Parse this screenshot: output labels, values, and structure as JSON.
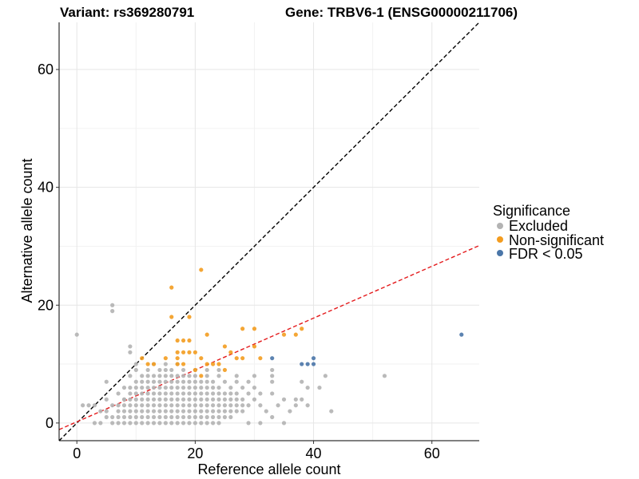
{
  "title_left": "Variant: rs369280791",
  "title_right": "Gene: TRBV6-1 (ENSG00000211706)",
  "chart_data": {
    "type": "scatter",
    "xlabel": "Reference allele count",
    "ylabel": "Alternative allele count",
    "xlim": [
      -3,
      68
    ],
    "ylim": [
      -3,
      68
    ],
    "xticks": [
      0,
      20,
      40,
      60
    ],
    "yticks": [
      0,
      20,
      40,
      60
    ],
    "grid": true,
    "legend": {
      "title": "Significance",
      "position": "right",
      "entries": [
        {
          "label": "Excluded",
          "color": "#b3b3b3"
        },
        {
          "label": "Non-significant",
          "color": "#f39c1f"
        },
        {
          "label": "FDR < 0.05",
          "color": "#4a76a8"
        }
      ]
    },
    "reference_lines": [
      {
        "name": "identity",
        "slope": 1,
        "intercept": 0,
        "color": "#000000",
        "style": "dashed"
      },
      {
        "name": "fit",
        "slope": 0.44,
        "intercept": 0.2,
        "color": "#e41a1c",
        "style": "dashed"
      }
    ],
    "series": [
      {
        "name": "Excluded",
        "color": "#b3b3b3",
        "points": [
          [
            0,
            15
          ],
          [
            6,
            20
          ],
          [
            6,
            19
          ],
          [
            9,
            13
          ],
          [
            9,
            12
          ],
          [
            1,
            3
          ],
          [
            2,
            3
          ],
          [
            3,
            3
          ],
          [
            4,
            2
          ],
          [
            5,
            2
          ],
          [
            3,
            0
          ],
          [
            4,
            0
          ],
          [
            5,
            1
          ],
          [
            6,
            1
          ],
          [
            6,
            3
          ],
          [
            7,
            3
          ],
          [
            7,
            5
          ],
          [
            8,
            4
          ],
          [
            8,
            6
          ],
          [
            9,
            8
          ],
          [
            10,
            10
          ],
          [
            10,
            9
          ],
          [
            11,
            7
          ],
          [
            12,
            5
          ],
          [
            5,
            4
          ],
          [
            5,
            7
          ],
          [
            6,
            0
          ],
          [
            7,
            0
          ],
          [
            8,
            0
          ],
          [
            9,
            0
          ],
          [
            10,
            0
          ],
          [
            11,
            0
          ],
          [
            12,
            0
          ],
          [
            13,
            0
          ],
          [
            14,
            0
          ],
          [
            15,
            0
          ],
          [
            16,
            0
          ],
          [
            17,
            0
          ],
          [
            18,
            0
          ],
          [
            19,
            0
          ],
          [
            20,
            0
          ],
          [
            21,
            0
          ],
          [
            22,
            0
          ],
          [
            23,
            0
          ],
          [
            24,
            0
          ],
          [
            7,
            1
          ],
          [
            8,
            1
          ],
          [
            9,
            1
          ],
          [
            10,
            1
          ],
          [
            11,
            1
          ],
          [
            12,
            1
          ],
          [
            13,
            1
          ],
          [
            14,
            1
          ],
          [
            15,
            1
          ],
          [
            16,
            1
          ],
          [
            17,
            1
          ],
          [
            18,
            1
          ],
          [
            19,
            1
          ],
          [
            20,
            1
          ],
          [
            21,
            1
          ],
          [
            22,
            1
          ],
          [
            23,
            1
          ],
          [
            24,
            1
          ],
          [
            25,
            1
          ],
          [
            26,
            1
          ],
          [
            7,
            2
          ],
          [
            8,
            2
          ],
          [
            9,
            2
          ],
          [
            10,
            2
          ],
          [
            11,
            2
          ],
          [
            12,
            2
          ],
          [
            13,
            2
          ],
          [
            14,
            2
          ],
          [
            15,
            2
          ],
          [
            16,
            2
          ],
          [
            17,
            2
          ],
          [
            18,
            2
          ],
          [
            19,
            2
          ],
          [
            20,
            2
          ],
          [
            21,
            2
          ],
          [
            22,
            2
          ],
          [
            23,
            2
          ],
          [
            24,
            2
          ],
          [
            25,
            2
          ],
          [
            26,
            2
          ],
          [
            27,
            2
          ],
          [
            28,
            2
          ],
          [
            8,
            3
          ],
          [
            9,
            3
          ],
          [
            10,
            3
          ],
          [
            11,
            3
          ],
          [
            12,
            3
          ],
          [
            13,
            3
          ],
          [
            14,
            3
          ],
          [
            15,
            3
          ],
          [
            16,
            3
          ],
          [
            17,
            3
          ],
          [
            18,
            3
          ],
          [
            19,
            3
          ],
          [
            20,
            3
          ],
          [
            21,
            3
          ],
          [
            22,
            3
          ],
          [
            23,
            3
          ],
          [
            24,
            3
          ],
          [
            25,
            3
          ],
          [
            26,
            3
          ],
          [
            27,
            3
          ],
          [
            28,
            3
          ],
          [
            29,
            3
          ],
          [
            8,
            4
          ],
          [
            9,
            4
          ],
          [
            10,
            4
          ],
          [
            11,
            4
          ],
          [
            12,
            4
          ],
          [
            13,
            4
          ],
          [
            14,
            4
          ],
          [
            15,
            4
          ],
          [
            16,
            4
          ],
          [
            17,
            4
          ],
          [
            18,
            4
          ],
          [
            19,
            4
          ],
          [
            20,
            4
          ],
          [
            21,
            4
          ],
          [
            22,
            4
          ],
          [
            23,
            4
          ],
          [
            24,
            4
          ],
          [
            25,
            4
          ],
          [
            26,
            4
          ],
          [
            27,
            4
          ],
          [
            28,
            4
          ],
          [
            30,
            4
          ],
          [
            9,
            5
          ],
          [
            10,
            5
          ],
          [
            11,
            5
          ],
          [
            13,
            5
          ],
          [
            14,
            5
          ],
          [
            15,
            5
          ],
          [
            16,
            5
          ],
          [
            17,
            5
          ],
          [
            18,
            5
          ],
          [
            19,
            5
          ],
          [
            20,
            5
          ],
          [
            21,
            5
          ],
          [
            22,
            5
          ],
          [
            23,
            5
          ],
          [
            24,
            5
          ],
          [
            25,
            5
          ],
          [
            26,
            5
          ],
          [
            27,
            5
          ],
          [
            29,
            5
          ],
          [
            31,
            5
          ],
          [
            9,
            6
          ],
          [
            10,
            6
          ],
          [
            11,
            6
          ],
          [
            12,
            6
          ],
          [
            13,
            6
          ],
          [
            14,
            6
          ],
          [
            15,
            6
          ],
          [
            16,
            6
          ],
          [
            17,
            6
          ],
          [
            18,
            6
          ],
          [
            19,
            6
          ],
          [
            20,
            6
          ],
          [
            21,
            6
          ],
          [
            22,
            6
          ],
          [
            23,
            6
          ],
          [
            24,
            6
          ],
          [
            26,
            6
          ],
          [
            28,
            6
          ],
          [
            30,
            6
          ],
          [
            10,
            7
          ],
          [
            12,
            7
          ],
          [
            13,
            7
          ],
          [
            14,
            7
          ],
          [
            15,
            7
          ],
          [
            16,
            7
          ],
          [
            17,
            7
          ],
          [
            18,
            7
          ],
          [
            19,
            7
          ],
          [
            20,
            7
          ],
          [
            21,
            7
          ],
          [
            22,
            7
          ],
          [
            23,
            7
          ],
          [
            25,
            7
          ],
          [
            27,
            7
          ],
          [
            29,
            7
          ],
          [
            11,
            8
          ],
          [
            12,
            8
          ],
          [
            13,
            8
          ],
          [
            14,
            8
          ],
          [
            15,
            8
          ],
          [
            16,
            8
          ],
          [
            17,
            8
          ],
          [
            18,
            8
          ],
          [
            19,
            8
          ],
          [
            20,
            8
          ],
          [
            22,
            8
          ],
          [
            24,
            8
          ],
          [
            27,
            8
          ],
          [
            12,
            9
          ],
          [
            14,
            9
          ],
          [
            15,
            9
          ],
          [
            16,
            9
          ],
          [
            18,
            9
          ],
          [
            20,
            9
          ],
          [
            22,
            9
          ],
          [
            24,
            9
          ],
          [
            13,
            10
          ],
          [
            15,
            10
          ],
          [
            17,
            10
          ],
          [
            29,
            0
          ],
          [
            31,
            0
          ],
          [
            33,
            1
          ],
          [
            35,
            0
          ],
          [
            34,
            3
          ],
          [
            36,
            2
          ],
          [
            37,
            4
          ],
          [
            33,
            5
          ],
          [
            33,
            7
          ],
          [
            33,
            8
          ],
          [
            33,
            9
          ],
          [
            38,
            7
          ],
          [
            42,
            8
          ],
          [
            41,
            6
          ],
          [
            39,
            6
          ],
          [
            39,
            3
          ],
          [
            43,
            2
          ],
          [
            52,
            8
          ],
          [
            31,
            3
          ],
          [
            30,
            8
          ],
          [
            32,
            2
          ],
          [
            37,
            3
          ],
          [
            38,
            4
          ],
          [
            35,
            4
          ]
        ]
      },
      {
        "name": "Non-significant",
        "color": "#f39c1f",
        "points": [
          [
            16,
            23
          ],
          [
            21,
            26
          ],
          [
            16,
            18
          ],
          [
            19,
            18
          ],
          [
            17,
            14
          ],
          [
            18,
            14
          ],
          [
            19,
            14
          ],
          [
            17,
            12
          ],
          [
            18,
            12
          ],
          [
            19,
            12
          ],
          [
            20,
            12
          ],
          [
            22,
            15
          ],
          [
            28,
            16
          ],
          [
            30,
            16
          ],
          [
            12,
            10
          ],
          [
            13,
            10
          ],
          [
            15,
            11
          ],
          [
            11,
            11
          ],
          [
            17,
            11
          ],
          [
            21,
            11
          ],
          [
            22,
            10
          ],
          [
            23,
            10
          ],
          [
            24,
            10
          ],
          [
            25,
            13
          ],
          [
            26,
            12
          ],
          [
            27,
            11
          ],
          [
            28,
            11
          ],
          [
            30,
            13
          ],
          [
            31,
            11
          ],
          [
            35,
            15
          ],
          [
            37,
            15
          ],
          [
            38,
            16
          ],
          [
            20,
            9
          ],
          [
            21,
            8
          ],
          [
            17,
            10
          ],
          [
            18,
            10
          ],
          [
            25,
            9
          ]
        ]
      },
      {
        "name": "FDR < 0.05",
        "color": "#4a76a8",
        "points": [
          [
            33,
            11
          ],
          [
            38,
            10
          ],
          [
            39,
            10
          ],
          [
            40,
            10
          ],
          [
            40,
            11
          ],
          [
            65,
            15
          ]
        ]
      }
    ]
  }
}
